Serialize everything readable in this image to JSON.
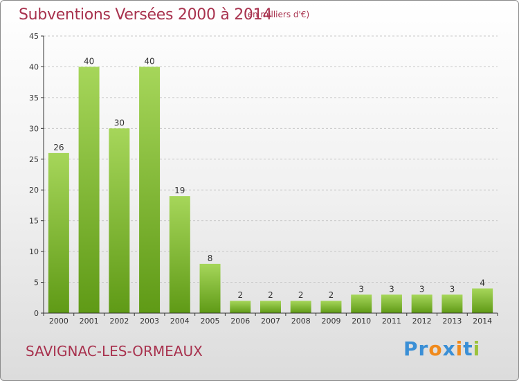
{
  "title": "Subventions Versées 2000 à 2014",
  "subtitle": "(en milliers d'€)",
  "commune": "SAVIGNAC-LES-ORMEAUX",
  "logo": {
    "text": "Proxiti",
    "letters": [
      "P",
      "r",
      "o",
      "x",
      "i",
      "t",
      "i"
    ],
    "colors": [
      "#3a8fd6",
      "#3a8fd6",
      "#f08a1c",
      "#3a8fd6",
      "#f08a1c",
      "#3a8fd6",
      "#9bc23a"
    ]
  },
  "colors": {
    "text_accent": "#a8324e",
    "bar_top": "#a6d65a",
    "bar_bottom": "#5f9a16",
    "axis": "#333333",
    "grid": "#c8c8c8"
  },
  "chart_data": {
    "type": "bar",
    "categories": [
      "2000",
      "2001",
      "2002",
      "2003",
      "2004",
      "2005",
      "2006",
      "2007",
      "2008",
      "2009",
      "2010",
      "2011",
      "2012",
      "2013",
      "2014"
    ],
    "values": [
      26,
      40,
      30,
      40,
      19,
      8,
      2,
      2,
      2,
      2,
      3,
      3,
      3,
      3,
      4
    ],
    "data_labels": [
      "26",
      "40",
      "30",
      "40",
      "19",
      "8",
      "2",
      "2",
      "2",
      "2",
      "3",
      "3",
      "3",
      "3",
      "4"
    ],
    "yticks": [
      0,
      5,
      10,
      15,
      20,
      25,
      30,
      35,
      40,
      45
    ],
    "ytick_labels": [
      "0",
      "5",
      "10",
      "15",
      "20",
      "25",
      "30",
      "35",
      "40",
      "45"
    ],
    "ylim": [
      0,
      45
    ],
    "grid": true,
    "grid_style": "dashed horizontal"
  }
}
